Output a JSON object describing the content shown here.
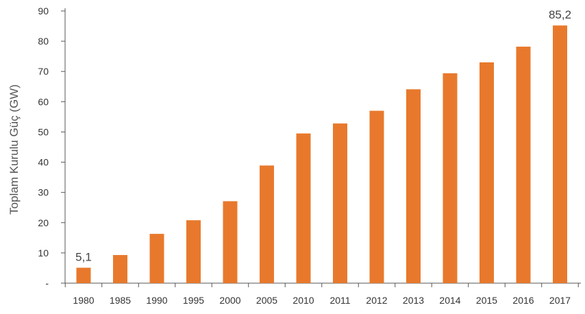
{
  "chart_data": {
    "type": "bar",
    "ylabel": "Toplam Kurulu Güç (GW)",
    "categories": [
      "1980",
      "1985",
      "1990",
      "1995",
      "2000",
      "2005",
      "2010",
      "2011",
      "2012",
      "2013",
      "2014",
      "2015",
      "2016",
      "2017"
    ],
    "values": [
      5.1,
      9.3,
      16.3,
      20.8,
      27.1,
      38.9,
      49.5,
      52.8,
      57.0,
      64.1,
      69.4,
      73.0,
      78.2,
      85.2
    ],
    "ylim": [
      0,
      90
    ],
    "yticks": [
      0,
      10,
      20,
      30,
      40,
      50,
      60,
      70,
      80,
      90
    ],
    "ytick_labels": [
      "-",
      "10",
      "20",
      "30",
      "40",
      "50",
      "60",
      "70",
      "80",
      "90"
    ],
    "data_labels": [
      {
        "category": "1980",
        "text": "5,1"
      },
      {
        "category": "2017",
        "text": "85,2"
      }
    ],
    "grid": false,
    "legend": "none",
    "bar_color": "#E8792C",
    "axis_color": "#555555",
    "text_color": "#333333"
  }
}
